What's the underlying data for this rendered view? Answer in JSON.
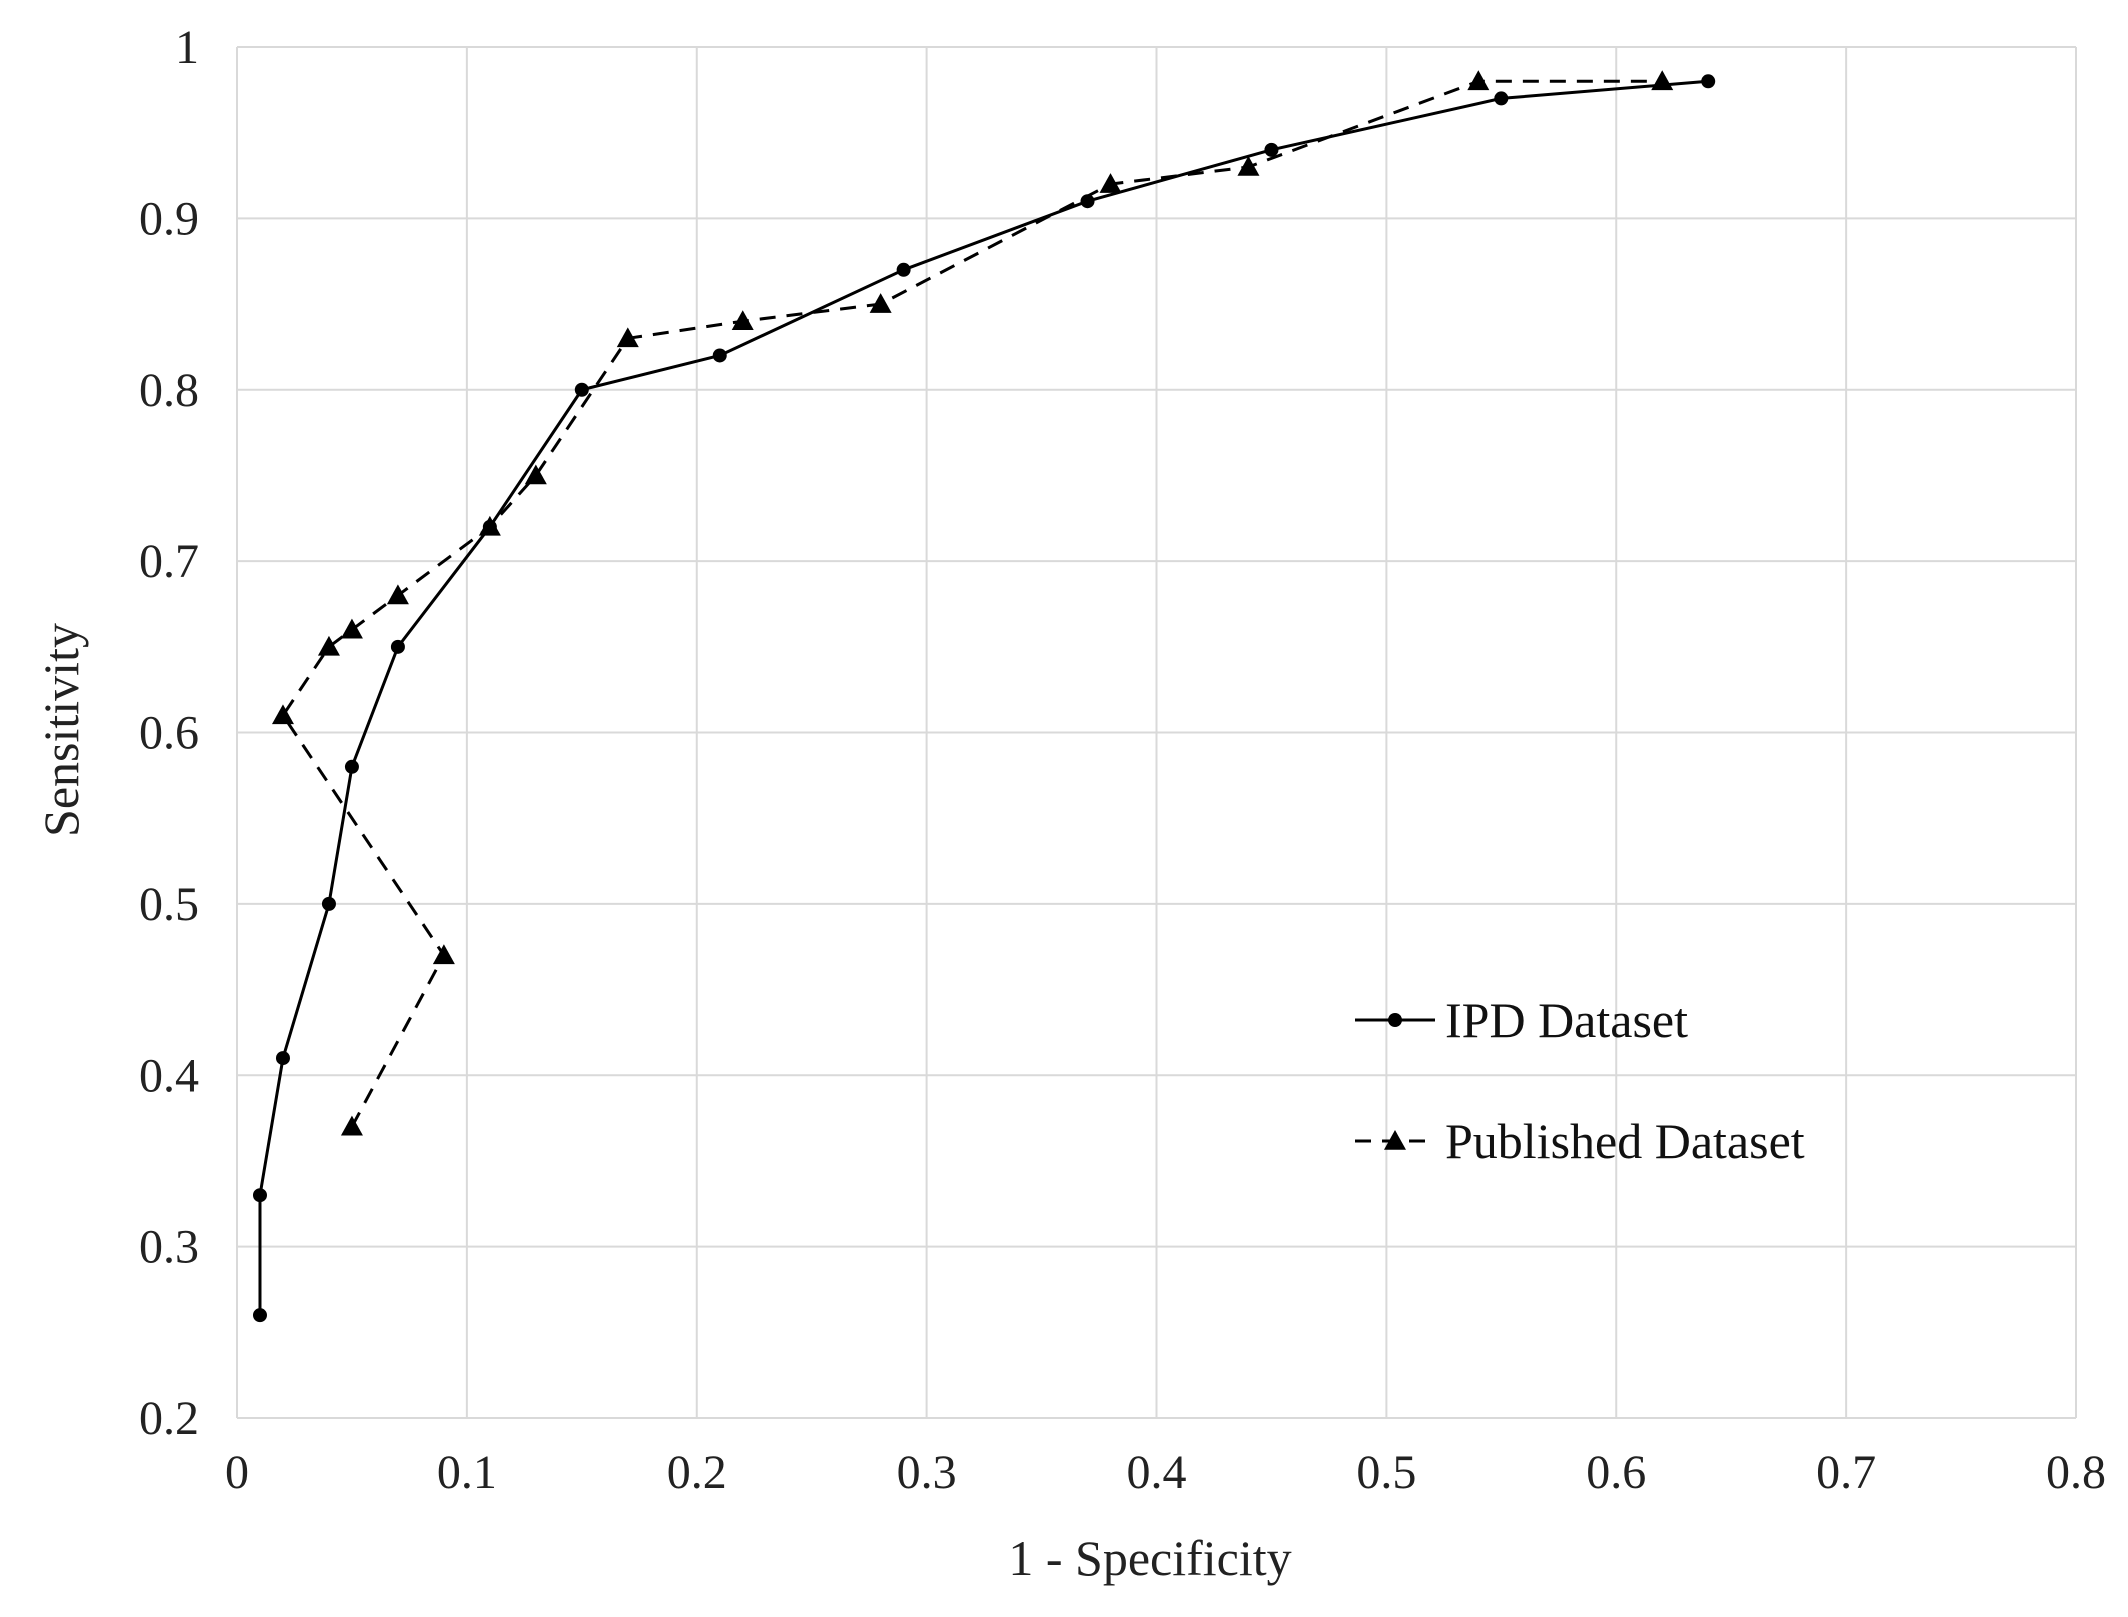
{
  "chart_data": {
    "type": "line",
    "title": "",
    "xlabel": "1 - Specificity",
    "ylabel": "Sensitivity",
    "xlim": [
      0,
      0.8
    ],
    "ylim": [
      0.2,
      1
    ],
    "x_ticks": [
      "0",
      "0.1",
      "0.2",
      "0.3",
      "0.4",
      "0.5",
      "0.6",
      "0.7",
      "0.8"
    ],
    "y_ticks": [
      "0.2",
      "0.3",
      "0.4",
      "0.5",
      "0.6",
      "0.7",
      "0.8",
      "0.9",
      "1"
    ],
    "grid": true,
    "legend_position": "lower-right",
    "series": [
      {
        "name": "IPD Dataset",
        "line_style": "solid",
        "marker": "circle",
        "color": "#000000",
        "points": [
          [
            0.01,
            0.26
          ],
          [
            0.01,
            0.33
          ],
          [
            0.02,
            0.41
          ],
          [
            0.04,
            0.5
          ],
          [
            0.05,
            0.58
          ],
          [
            0.07,
            0.65
          ],
          [
            0.11,
            0.72
          ],
          [
            0.15,
            0.8
          ],
          [
            0.21,
            0.82
          ],
          [
            0.29,
            0.87
          ],
          [
            0.37,
            0.91
          ],
          [
            0.45,
            0.94
          ],
          [
            0.55,
            0.97
          ],
          [
            0.64,
            0.98
          ]
        ]
      },
      {
        "name": "Published Dataset",
        "line_style": "dashed",
        "marker": "triangle",
        "color": "#000000",
        "points": [
          [
            0.05,
            0.37
          ],
          [
            0.09,
            0.47
          ],
          [
            0.02,
            0.61
          ],
          [
            0.04,
            0.65
          ],
          [
            0.05,
            0.66
          ],
          [
            0.07,
            0.68
          ],
          [
            0.11,
            0.72
          ],
          [
            0.13,
            0.75
          ],
          [
            0.17,
            0.83
          ],
          [
            0.22,
            0.84
          ],
          [
            0.28,
            0.85
          ],
          [
            0.38,
            0.92
          ],
          [
            0.44,
            0.93
          ],
          [
            0.54,
            0.98
          ],
          [
            0.62,
            0.98
          ]
        ]
      }
    ]
  }
}
